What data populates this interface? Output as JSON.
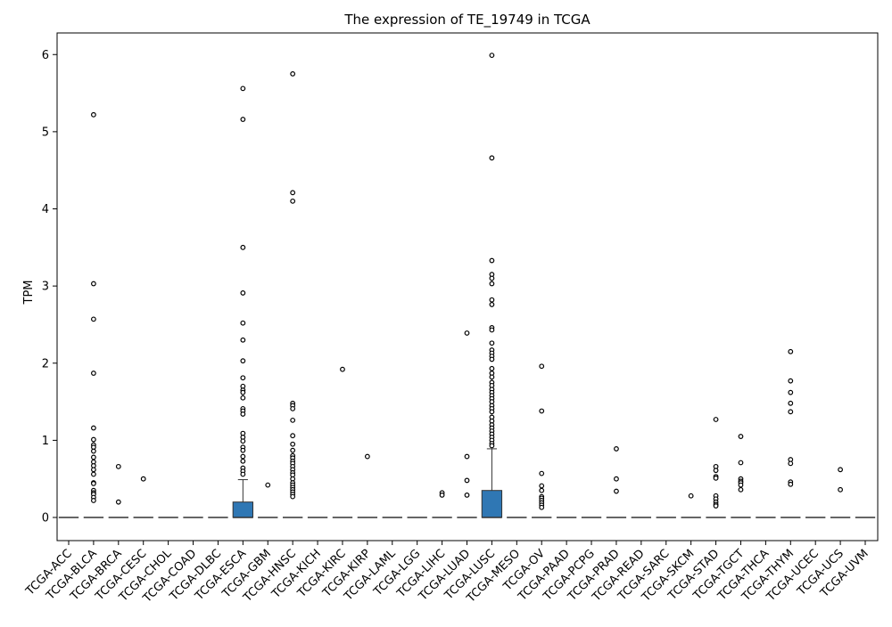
{
  "chart_data": {
    "type": "box",
    "title": "The expression of TE_19749 in TCGA",
    "xlabel": "",
    "ylabel": "TPM",
    "ylim": [
      -0.3,
      6.28
    ],
    "yticks": [
      0,
      1,
      2,
      3,
      4,
      5,
      6
    ],
    "grid": false,
    "colors": {
      "box_fill": "#2f77b4",
      "box_edge": "#333333",
      "median": "#333333",
      "outlier_edge": "#000000",
      "outlier_fill": "#ffffff"
    },
    "categories": [
      "TCGA-ACC",
      "TCGA-BLCA",
      "TCGA-BRCA",
      "TCGA-CESC",
      "TCGA-CHOL",
      "TCGA-COAD",
      "TCGA-DLBC",
      "TCGA-ESCA",
      "TCGA-GBM",
      "TCGA-HNSC",
      "TCGA-KICH",
      "TCGA-KIRC",
      "TCGA-KIRP",
      "TCGA-LAML",
      "TCGA-LGG",
      "TCGA-LIHC",
      "TCGA-LUAD",
      "TCGA-LUSC",
      "TCGA-MESO",
      "TCGA-OV",
      "TCGA-PAAD",
      "TCGA-PCPG",
      "TCGA-PRAD",
      "TCGA-READ",
      "TCGA-SARC",
      "TCGA-SKCM",
      "TCGA-STAD",
      "TCGA-TGCT",
      "TCGA-THCA",
      "TCGA-THYM",
      "TCGA-UCEC",
      "TCGA-UCS",
      "TCGA-UVM"
    ],
    "boxes": [
      {
        "category": "TCGA-ACC",
        "q1": 0,
        "median": 0,
        "q3": 0,
        "whisker_low": 0,
        "whisker_high": 0,
        "outliers": []
      },
      {
        "category": "TCGA-BLCA",
        "q1": 0,
        "median": 0,
        "q3": 0,
        "whisker_low": 0,
        "whisker_high": 0,
        "outliers": [
          5.22,
          3.03,
          2.57,
          1.87,
          1.16,
          1.01,
          0.94,
          0.91,
          0.86,
          0.78,
          0.72,
          0.67,
          0.62,
          0.56,
          0.45,
          0.44,
          0.35,
          0.32,
          0.3,
          0.26,
          0.22
        ]
      },
      {
        "category": "TCGA-BRCA",
        "q1": 0,
        "median": 0,
        "q3": 0,
        "whisker_low": 0,
        "whisker_high": 0,
        "outliers": [
          0.66,
          0.2
        ]
      },
      {
        "category": "TCGA-CESC",
        "q1": 0,
        "median": 0,
        "q3": 0,
        "whisker_low": 0,
        "whisker_high": 0,
        "outliers": [
          0.5
        ]
      },
      {
        "category": "TCGA-CHOL",
        "q1": 0,
        "median": 0,
        "q3": 0,
        "whisker_low": 0,
        "whisker_high": 0,
        "outliers": []
      },
      {
        "category": "TCGA-COAD",
        "q1": 0,
        "median": 0,
        "q3": 0,
        "whisker_low": 0,
        "whisker_high": 0,
        "outliers": []
      },
      {
        "category": "TCGA-DLBC",
        "q1": 0,
        "median": 0,
        "q3": 0,
        "whisker_low": 0,
        "whisker_high": 0,
        "outliers": []
      },
      {
        "category": "TCGA-ESCA",
        "q1": 0,
        "median": 0,
        "q3": 0.2,
        "whisker_low": 0,
        "whisker_high": 0.49,
        "outliers": [
          5.56,
          5.16,
          3.5,
          2.91,
          2.52,
          2.3,
          2.03,
          1.81,
          1.7,
          1.65,
          1.62,
          1.55,
          1.41,
          1.38,
          1.34,
          1.09,
          1.04,
          0.99,
          0.91,
          0.87,
          0.79,
          0.73,
          0.64,
          0.6,
          0.56
        ]
      },
      {
        "category": "TCGA-GBM",
        "q1": 0,
        "median": 0,
        "q3": 0,
        "whisker_low": 0,
        "whisker_high": 0,
        "outliers": [
          0.42
        ]
      },
      {
        "category": "TCGA-HNSC",
        "q1": 0,
        "median": 0,
        "q3": 0,
        "whisker_low": 0,
        "whisker_high": 0,
        "outliers": [
          5.75,
          4.21,
          4.1,
          1.48,
          1.45,
          1.41,
          1.26,
          1.06,
          0.95,
          0.87,
          0.8,
          0.77,
          0.73,
          0.7,
          0.66,
          0.62,
          0.58,
          0.55,
          0.5,
          0.45,
          0.42,
          0.39,
          0.36,
          0.33,
          0.3,
          0.27
        ]
      },
      {
        "category": "TCGA-KICH",
        "q1": 0,
        "median": 0,
        "q3": 0,
        "whisker_low": 0,
        "whisker_high": 0,
        "outliers": []
      },
      {
        "category": "TCGA-KIRC",
        "q1": 0,
        "median": 0,
        "q3": 0,
        "whisker_low": 0,
        "whisker_high": 0,
        "outliers": [
          1.92
        ]
      },
      {
        "category": "TCGA-KIRP",
        "q1": 0,
        "median": 0,
        "q3": 0,
        "whisker_low": 0,
        "whisker_high": 0,
        "outliers": [
          0.79
        ]
      },
      {
        "category": "TCGA-LAML",
        "q1": 0,
        "median": 0,
        "q3": 0,
        "whisker_low": 0,
        "whisker_high": 0,
        "outliers": []
      },
      {
        "category": "TCGA-LGG",
        "q1": 0,
        "median": 0,
        "q3": 0,
        "whisker_low": 0,
        "whisker_high": 0,
        "outliers": []
      },
      {
        "category": "TCGA-LIHC",
        "q1": 0,
        "median": 0,
        "q3": 0,
        "whisker_low": 0,
        "whisker_high": 0,
        "outliers": [
          0.32,
          0.29
        ]
      },
      {
        "category": "TCGA-LUAD",
        "q1": 0,
        "median": 0,
        "q3": 0,
        "whisker_low": 0,
        "whisker_high": 0,
        "outliers": [
          2.39,
          0.79,
          0.48,
          0.29
        ]
      },
      {
        "category": "TCGA-LUSC",
        "q1": 0,
        "median": 0,
        "q3": 0.35,
        "whisker_low": 0,
        "whisker_high": 0.89,
        "outliers": [
          5.99,
          4.66,
          3.33,
          3.15,
          3.1,
          3.03,
          2.82,
          2.76,
          2.46,
          2.43,
          2.26,
          2.17,
          2.13,
          2.09,
          2.05,
          1.93,
          1.87,
          1.82,
          1.75,
          1.71,
          1.66,
          1.62,
          1.58,
          1.54,
          1.5,
          1.45,
          1.41,
          1.37,
          1.3,
          1.25,
          1.2,
          1.16,
          1.12,
          1.08,
          1.04,
          1.0,
          0.96,
          0.93
        ]
      },
      {
        "category": "TCGA-MESO",
        "q1": 0,
        "median": 0,
        "q3": 0,
        "whisker_low": 0,
        "whisker_high": 0,
        "outliers": []
      },
      {
        "category": "TCGA-OV",
        "q1": 0,
        "median": 0,
        "q3": 0,
        "whisker_low": 0,
        "whisker_high": 0,
        "outliers": [
          1.96,
          1.38,
          0.57,
          0.41,
          0.35,
          0.27,
          0.25,
          0.22,
          0.19,
          0.16,
          0.13
        ]
      },
      {
        "category": "TCGA-PAAD",
        "q1": 0,
        "median": 0,
        "q3": 0,
        "whisker_low": 0,
        "whisker_high": 0,
        "outliers": []
      },
      {
        "category": "TCGA-PCPG",
        "q1": 0,
        "median": 0,
        "q3": 0,
        "whisker_low": 0,
        "whisker_high": 0,
        "outliers": []
      },
      {
        "category": "TCGA-PRAD",
        "q1": 0,
        "median": 0,
        "q3": 0,
        "whisker_low": 0,
        "whisker_high": 0,
        "outliers": [
          0.89,
          0.5,
          0.34
        ]
      },
      {
        "category": "TCGA-READ",
        "q1": 0,
        "median": 0,
        "q3": 0,
        "whisker_low": 0,
        "whisker_high": 0,
        "outliers": []
      },
      {
        "category": "TCGA-SARC",
        "q1": 0,
        "median": 0,
        "q3": 0,
        "whisker_low": 0,
        "whisker_high": 0,
        "outliers": []
      },
      {
        "category": "TCGA-SKCM",
        "q1": 0,
        "median": 0,
        "q3": 0,
        "whisker_low": 0,
        "whisker_high": 0,
        "outliers": [
          0.28
        ]
      },
      {
        "category": "TCGA-STAD",
        "q1": 0,
        "median": 0,
        "q3": 0,
        "whisker_low": 0,
        "whisker_high": 0,
        "outliers": [
          1.27,
          0.66,
          0.61,
          0.53,
          0.51,
          0.28,
          0.24,
          0.2,
          0.17,
          0.15
        ]
      },
      {
        "category": "TCGA-TGCT",
        "q1": 0,
        "median": 0,
        "q3": 0,
        "whisker_low": 0,
        "whisker_high": 0,
        "outliers": [
          1.05,
          0.71,
          0.5,
          0.47,
          0.45,
          0.42,
          0.36
        ]
      },
      {
        "category": "TCGA-THCA",
        "q1": 0,
        "median": 0,
        "q3": 0,
        "whisker_low": 0,
        "whisker_high": 0,
        "outliers": []
      },
      {
        "category": "TCGA-THYM",
        "q1": 0,
        "median": 0,
        "q3": 0,
        "whisker_low": 0,
        "whisker_high": 0,
        "outliers": [
          2.15,
          1.77,
          1.62,
          1.48,
          1.37,
          0.75,
          0.7,
          0.46,
          0.43
        ]
      },
      {
        "category": "TCGA-UCEC",
        "q1": 0,
        "median": 0,
        "q3": 0,
        "whisker_low": 0,
        "whisker_high": 0,
        "outliers": []
      },
      {
        "category": "TCGA-UCS",
        "q1": 0,
        "median": 0,
        "q3": 0,
        "whisker_low": 0,
        "whisker_high": 0,
        "outliers": [
          0.62,
          0.36
        ]
      },
      {
        "category": "TCGA-UVM",
        "q1": 0,
        "median": 0,
        "q3": 0,
        "whisker_low": 0,
        "whisker_high": 0,
        "outliers": []
      }
    ]
  }
}
